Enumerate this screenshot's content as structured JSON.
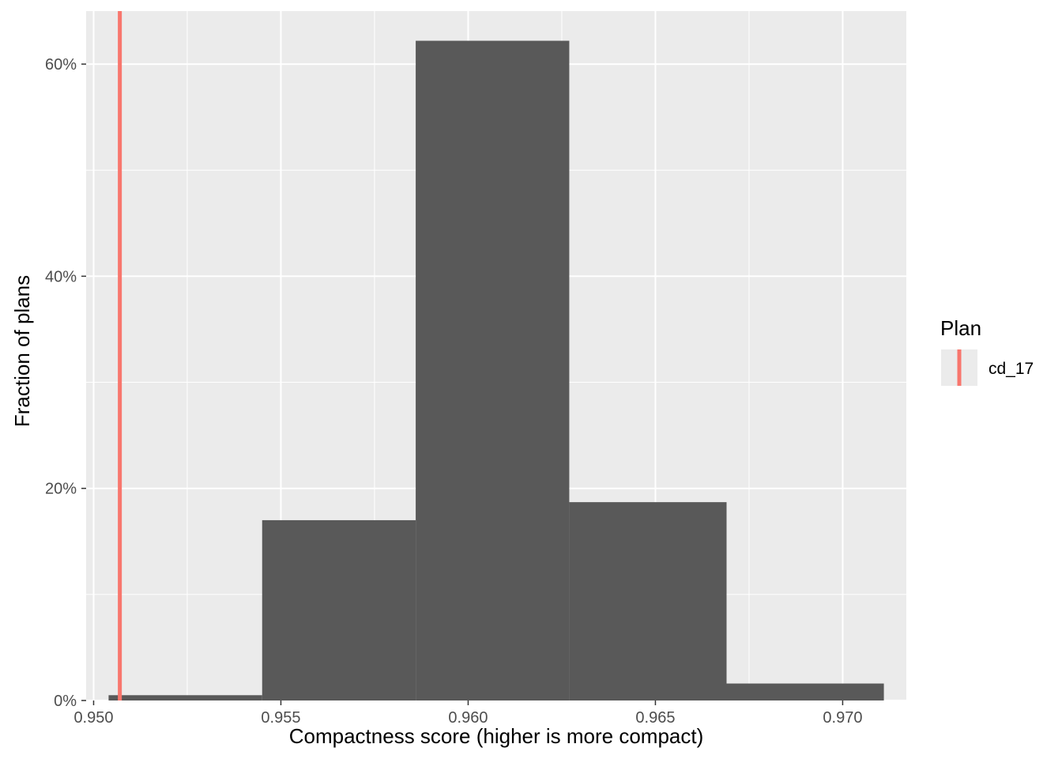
{
  "chart_data": {
    "type": "histogram",
    "xlabel": "Compactness score (higher is more compact)",
    "ylabel": "Fraction of plans",
    "xlim": [
      0.9498,
      0.9717
    ],
    "ylim": [
      0,
      0.65
    ],
    "x_ticks": [
      0.95,
      0.955,
      0.96,
      0.965,
      0.97
    ],
    "x_tick_labels": [
      "0.950",
      "0.955",
      "0.960",
      "0.965",
      "0.970"
    ],
    "y_ticks": [
      0,
      0.2,
      0.4,
      0.6
    ],
    "y_tick_labels": [
      "0%",
      "20%",
      "40%",
      "60%"
    ],
    "bins": [
      {
        "x0": 0.9504,
        "x1": 0.9545,
        "value": 0.005
      },
      {
        "x0": 0.9545,
        "x1": 0.9586,
        "value": 0.17
      },
      {
        "x0": 0.9586,
        "x1": 0.9627,
        "value": 0.622
      },
      {
        "x0": 0.9627,
        "x1": 0.9669,
        "value": 0.187
      },
      {
        "x0": 0.9669,
        "x1": 0.9711,
        "value": 0.016
      }
    ],
    "bar_color": "#595959",
    "panel_background": "#ebebeb",
    "grid": true,
    "reference_line": {
      "x": 0.9507,
      "color": "#f8766d",
      "label": "cd_17"
    },
    "legend": {
      "title": "Plan",
      "position": "right",
      "entries": [
        {
          "label": "cd_17",
          "color": "#f8766d"
        }
      ]
    }
  }
}
